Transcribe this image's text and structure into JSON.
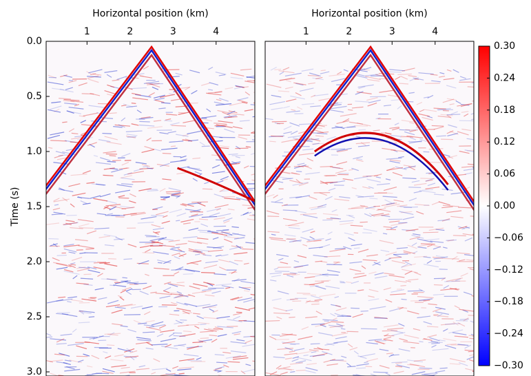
{
  "chart_data": [
    {
      "type": "image",
      "xlabel": "Horizontal position (km)",
      "ylabel": "Time (s)",
      "xlim": [
        0.05,
        4.9
      ],
      "xticks": [
        1,
        2,
        3,
        4
      ],
      "ylim": [
        3.0,
        0.0
      ],
      "yticks": [
        {
          "value": 0,
          "label": "0.0"
        },
        0.5,
        {
          "value": 1,
          "label": "1.0"
        },
        1.5,
        {
          "value": 2,
          "label": "2.0"
        },
        2.5,
        {
          "value": 3,
          "label": "3.0"
        }
      ]
    },
    {
      "type": "image",
      "xlabel": "Horizontal position (km)",
      "xlim": [
        0.05,
        4.9
      ],
      "xticks": [
        1,
        2,
        3,
        4
      ],
      "ylim": [
        3.0,
        0.0
      ]
    }
  ],
  "colorbar": {
    "lim": [
      -0.3,
      0.3
    ],
    "colors": [
      "#0000ff",
      "#ffffff",
      "#ff0000"
    ],
    "ticks": [
      {
        "value": 0.3,
        "label": "0.30"
      },
      0.24,
      0.18,
      0.12,
      0.06,
      {
        "value": 0,
        "label": "0.00"
      },
      {
        "value": -0.06,
        "label": "−0.06"
      },
      {
        "value": -0.12,
        "label": "−0.12"
      },
      {
        "value": -0.18,
        "label": "−0.18"
      },
      {
        "value": -0.24,
        "label": "−0.24"
      },
      {
        "value": -0.3,
        "label": "−0.30"
      }
    ]
  }
}
